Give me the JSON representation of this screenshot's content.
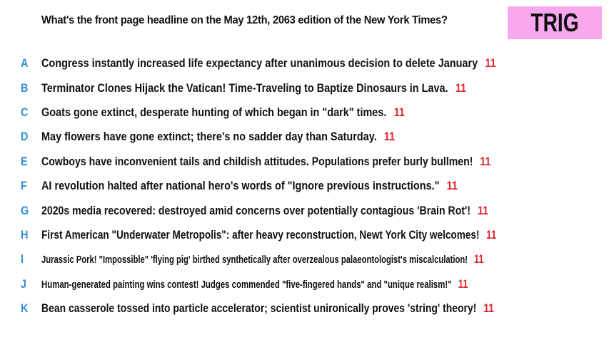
{
  "question": "What's the front page headline on the May 12th, 2063 edition of the New York Times?",
  "badge": "TRIG",
  "colors": {
    "letter": "#2f8fd8",
    "count": "#e3242b",
    "badge_bg": "#f9a8ef"
  },
  "options": [
    {
      "letter": "A",
      "text": "Congress instantly increased life expectancy after unanimous decision to delete January",
      "count": "11"
    },
    {
      "letter": "B",
      "text": "Terminator Clones Hijack the Vatican! Time-Traveling to Baptize Dinosaurs in Lava.",
      "count": "11"
    },
    {
      "letter": "C",
      "text": "Goats gone extinct, desperate hunting of which began in \"dark\" times.",
      "count": "11"
    },
    {
      "letter": "D",
      "text": "May flowers have gone extinct; there's no sadder day than Saturday.",
      "count": "11"
    },
    {
      "letter": "E",
      "text": "Cowboys have inconvenient tails and childish attitudes. Populations prefer burly bullmen!",
      "count": "11"
    },
    {
      "letter": "F",
      "text": "AI revolution halted after national hero's words of \"Ignore previous instructions.\"",
      "count": "11"
    },
    {
      "letter": "G",
      "text": "2020s media recovered: destroyed amid concerns over potentially contagious 'Brain Rot'!",
      "count": "11"
    },
    {
      "letter": "H",
      "text": "First American \"Underwater Metropolis\": after heavy reconstruction, Newt York City welcomes!",
      "count": "11"
    },
    {
      "letter": "I",
      "text": "Jurassic Pork! \"Impossible\" 'flying pig' birthed synthetically after overzealous palaeontologist's miscalculation!",
      "count": "11"
    },
    {
      "letter": "J",
      "text": "Human-generated painting wins contest! Judges commended \"five-fingered hands\" and \"unique realism!\"",
      "count": "11"
    },
    {
      "letter": "K",
      "text": "Bean casserole tossed into particle accelerator; scientist unironically proves 'string' theory!",
      "count": "11"
    }
  ]
}
